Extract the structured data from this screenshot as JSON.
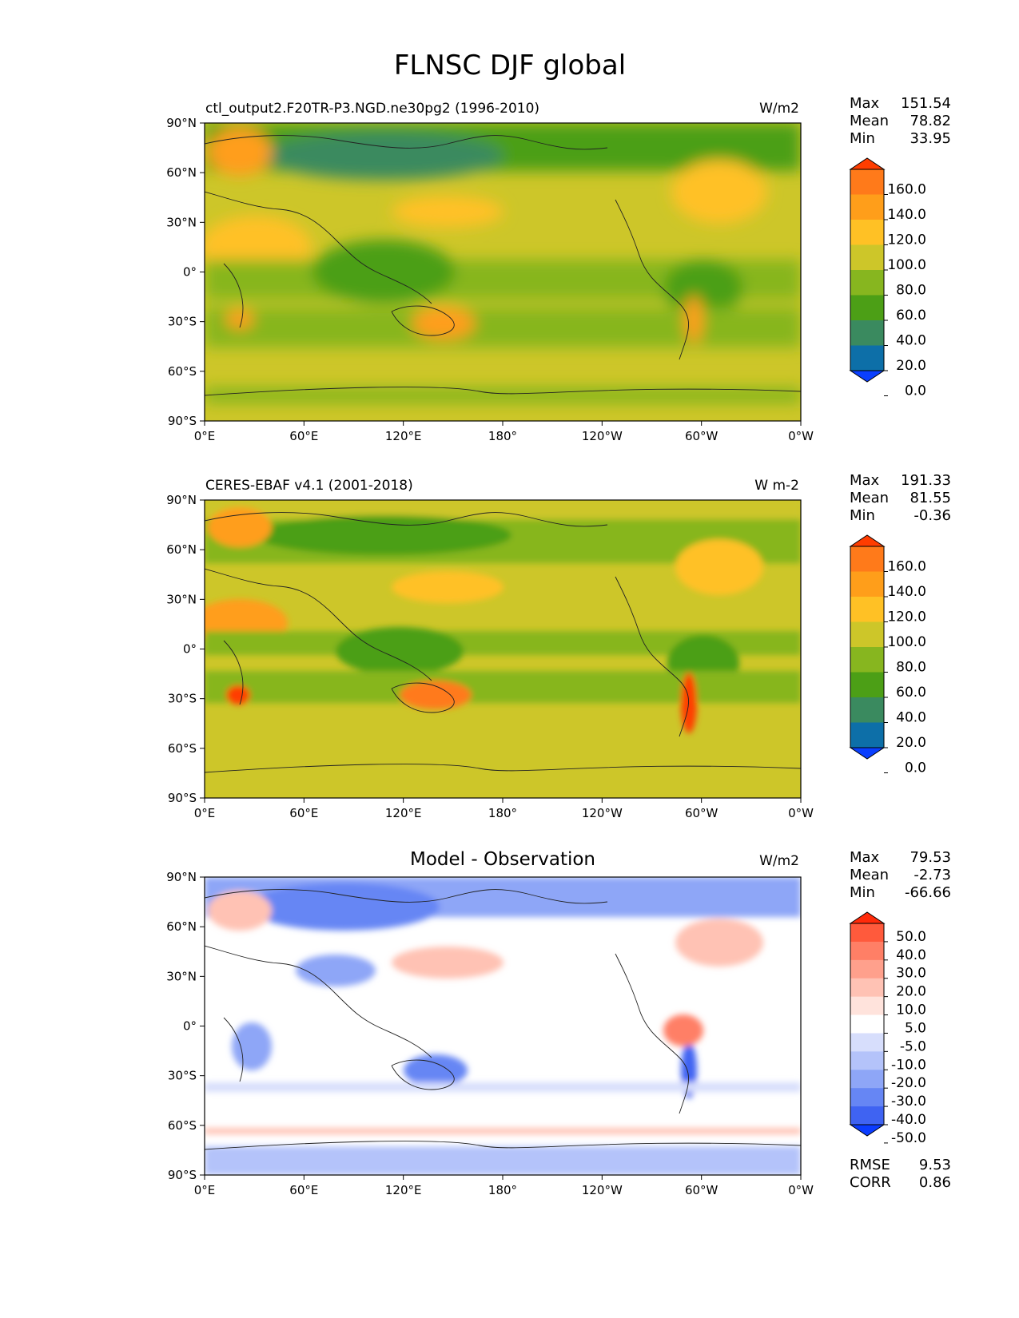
{
  "figure": {
    "title": "FLNSC DJF global"
  },
  "chart_data": [
    {
      "type": "heatmap",
      "title": "ctl_output2.F20TR-P3.NGD.ne30pg2 (1996-2010)",
      "units": "W/m2",
      "stats": [
        {
          "label": "Max",
          "value": "151.54"
        },
        {
          "label": "Mean",
          "value": "78.82"
        },
        {
          "label": "Min",
          "value": "33.95"
        }
      ],
      "x_ticks": [
        "0°E",
        "60°E",
        "120°E",
        "180°",
        "120°W",
        "60°W",
        "0°W"
      ],
      "y_ticks": [
        "90°N",
        "60°N",
        "30°N",
        "0°",
        "30°S",
        "60°S",
        "90°S"
      ],
      "xlim": [
        0,
        360
      ],
      "ylim": [
        -90,
        90
      ],
      "colorbar": {
        "ticks": [
          "160.0",
          "140.0",
          "120.0",
          "100.0",
          "80.0",
          "60.0",
          "40.0",
          "20.0",
          "0.0"
        ],
        "colors": [
          "#ff3d00",
          "#ff7a1a",
          "#ff9e1a",
          "#ffc125",
          "#cdc629",
          "#87b61f",
          "#4c9f16",
          "#3a8a5f",
          "#0d6fa8",
          "#0a3fff"
        ]
      }
    },
    {
      "type": "heatmap",
      "title": "CERES-EBAF v4.1 (2001-2018)",
      "units": "W m-2",
      "stats": [
        {
          "label": "Max",
          "value": "191.33"
        },
        {
          "label": "Mean",
          "value": "81.55"
        },
        {
          "label": "Min",
          "value": "-0.36"
        }
      ],
      "x_ticks": [
        "0°E",
        "60°E",
        "120°E",
        "180°",
        "120°W",
        "60°W",
        "0°W"
      ],
      "y_ticks": [
        "90°N",
        "60°N",
        "30°N",
        "0°",
        "30°S",
        "60°S",
        "90°S"
      ],
      "xlim": [
        0,
        360
      ],
      "ylim": [
        -90,
        90
      ],
      "colorbar": {
        "ticks": [
          "160.0",
          "140.0",
          "120.0",
          "100.0",
          "80.0",
          "60.0",
          "40.0",
          "20.0",
          "0.0"
        ],
        "colors": [
          "#ff3d00",
          "#ff7a1a",
          "#ff9e1a",
          "#ffc125",
          "#cdc629",
          "#87b61f",
          "#4c9f16",
          "#3a8a5f",
          "#0d6fa8",
          "#0a3fff"
        ]
      }
    },
    {
      "type": "heatmap",
      "title": "Model - Observation",
      "units": "W/m2",
      "stats": [
        {
          "label": "Max",
          "value": "79.53"
        },
        {
          "label": "Mean",
          "value": "-2.73"
        },
        {
          "label": "Min",
          "value": "-66.66"
        }
      ],
      "x_ticks": [
        "0°E",
        "60°E",
        "120°E",
        "180°",
        "120°W",
        "60°W",
        "0°W"
      ],
      "y_ticks": [
        "90°N",
        "60°N",
        "30°N",
        "0°",
        "30°S",
        "60°S",
        "90°S"
      ],
      "xlim": [
        0,
        360
      ],
      "ylim": [
        -90,
        90
      ],
      "colorbar": {
        "ticks": [
          "50.0",
          "40.0",
          "30.0",
          "20.0",
          "10.0",
          "5.0",
          "-5.0",
          "-10.0",
          "-20.0",
          "-30.0",
          "-40.0",
          "-50.0"
        ],
        "colors": [
          "#ff2a0a",
          "#ff5a3c",
          "#ff7f66",
          "#ffa08c",
          "#ffc2b4",
          "#ffe3dc",
          "#ffffff",
          "#d7defc",
          "#b4c3fa",
          "#8ea6f7",
          "#6686f4",
          "#3f63f2",
          "#0b3cff"
        ]
      },
      "metrics": [
        {
          "label": "RMSE",
          "value": "9.53"
        },
        {
          "label": "CORR",
          "value": "0.86"
        }
      ]
    }
  ]
}
